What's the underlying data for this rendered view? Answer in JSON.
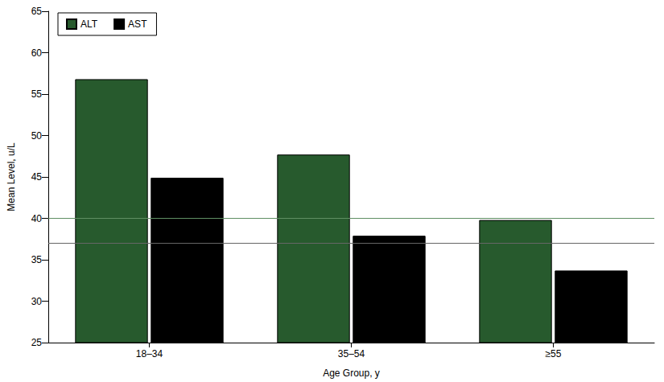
{
  "chart_data": {
    "type": "bar",
    "x_label": "Age Group, y",
    "y_label": "Mean Level, u/L",
    "categories": [
      "18–34",
      "35–54",
      "≥55"
    ],
    "series": [
      {
        "name": "ALT",
        "color": "#275a2d",
        "values": [
          56.8,
          47.7,
          39.8
        ]
      },
      {
        "name": "AST",
        "color": "#000000",
        "values": [
          44.9,
          37.9,
          33.7
        ]
      }
    ],
    "reference_lines": [
      {
        "value": 40,
        "color": "#5f8f63"
      },
      {
        "value": 37,
        "color": "#666666"
      }
    ],
    "ylim": [
      25,
      65
    ],
    "yticks": [
      25,
      30,
      35,
      40,
      45,
      50,
      55,
      60,
      65
    ],
    "grid": false,
    "legend": "upper left"
  }
}
